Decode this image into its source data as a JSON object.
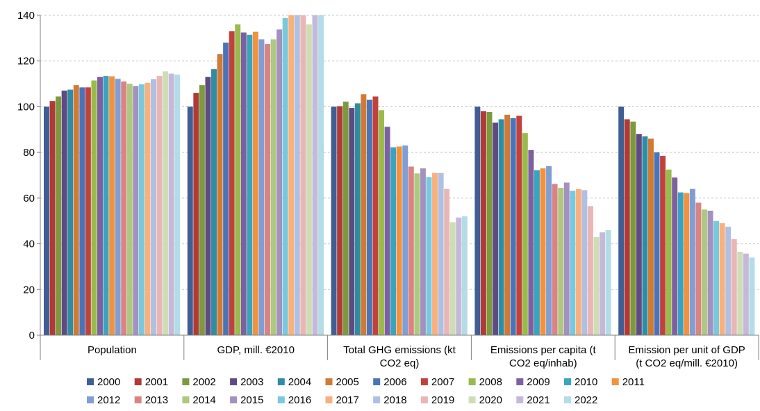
{
  "chart_data": {
    "type": "bar",
    "categories": [
      [
        "Population"
      ],
      [
        "GDP, mill. €2010"
      ],
      [
        "Total GHG emissions (kt",
        "CO2 eq)"
      ],
      [
        "Emissions per capita (t",
        "CO2 eq/inhab)"
      ],
      [
        "Emission per unit of GDP",
        "(t CO2 eq/mill. €2010)"
      ]
    ],
    "ylim": [
      0,
      140
    ],
    "yticks": [
      0,
      20,
      40,
      60,
      80,
      100,
      120,
      140
    ],
    "grid": true,
    "legend_position": "bottom",
    "series": [
      {
        "name": "2000",
        "color": "#3F5F94",
        "values": [
          100,
          100,
          100,
          100,
          100
        ]
      },
      {
        "name": "2001",
        "color": "#B03A36",
        "values": [
          102.5,
          106,
          100.2,
          98,
          94.5
        ]
      },
      {
        "name": "2002",
        "color": "#7C9A3D",
        "values": [
          104.5,
          109.5,
          102.2,
          97.7,
          93.5
        ]
      },
      {
        "name": "2003",
        "color": "#5F4A82",
        "values": [
          107,
          113,
          99.5,
          93,
          88
        ]
      },
      {
        "name": "2004",
        "color": "#2F8DA3",
        "values": [
          107.5,
          116.5,
          101.5,
          94.5,
          87
        ]
      },
      {
        "name": "2005",
        "color": "#D17A35",
        "values": [
          109.5,
          123,
          105.5,
          96.5,
          86
        ]
      },
      {
        "name": "2006",
        "color": "#4A74B8",
        "values": [
          108.5,
          128,
          103,
          95,
          80
        ]
      },
      {
        "name": "2007",
        "color": "#C0423D",
        "values": [
          108.5,
          133,
          104.5,
          96,
          78.5
        ]
      },
      {
        "name": "2008",
        "color": "#98BB4A",
        "values": [
          111.5,
          136,
          98.5,
          88.5,
          72.5
        ]
      },
      {
        "name": "2009",
        "color": "#7D60A0",
        "values": [
          113,
          132.5,
          91.2,
          81,
          69
        ]
      },
      {
        "name": "2010",
        "color": "#3AA3BD",
        "values": [
          113.5,
          131.5,
          82.2,
          72.2,
          62.5
        ]
      },
      {
        "name": "2011",
        "color": "#F2913E",
        "values": [
          113.3,
          132.8,
          82.6,
          73,
          62.2
        ]
      },
      {
        "name": "2012",
        "color": "#7F9ED6",
        "values": [
          112.2,
          129.5,
          83,
          74,
          64
        ]
      },
      {
        "name": "2013",
        "color": "#D98482",
        "values": [
          111,
          127.5,
          73.8,
          66.2,
          58
        ]
      },
      {
        "name": "2014",
        "color": "#AEC880",
        "values": [
          110,
          129.5,
          70.8,
          64.5,
          55
        ]
      },
      {
        "name": "2015",
        "color": "#A391C0",
        "values": [
          109,
          133.8,
          73,
          66.8,
          54.5
        ]
      },
      {
        "name": "2016",
        "color": "#78C9DD",
        "values": [
          109.8,
          138.8,
          69.2,
          63.2,
          50
        ]
      },
      {
        "name": "2017",
        "color": "#FAB07C",
        "values": [
          110.5,
          140,
          71,
          64,
          49
        ]
      },
      {
        "name": "2018",
        "color": "#AFC0E2",
        "values": [
          112,
          140,
          71,
          63.5,
          47.5
        ]
      },
      {
        "name": "2019",
        "color": "#E9B6B5",
        "values": [
          113.5,
          140,
          64,
          56.5,
          42
        ]
      },
      {
        "name": "2020",
        "color": "#CFDDB7",
        "values": [
          115.5,
          136,
          49.5,
          43,
          36.5
        ]
      },
      {
        "name": "2021",
        "color": "#C5B9D9",
        "values": [
          114.5,
          140,
          51.5,
          45,
          35.7
        ]
      },
      {
        "name": "2022",
        "color": "#B3DCE8",
        "values": [
          114,
          140,
          52,
          46,
          34
        ]
      }
    ]
  }
}
